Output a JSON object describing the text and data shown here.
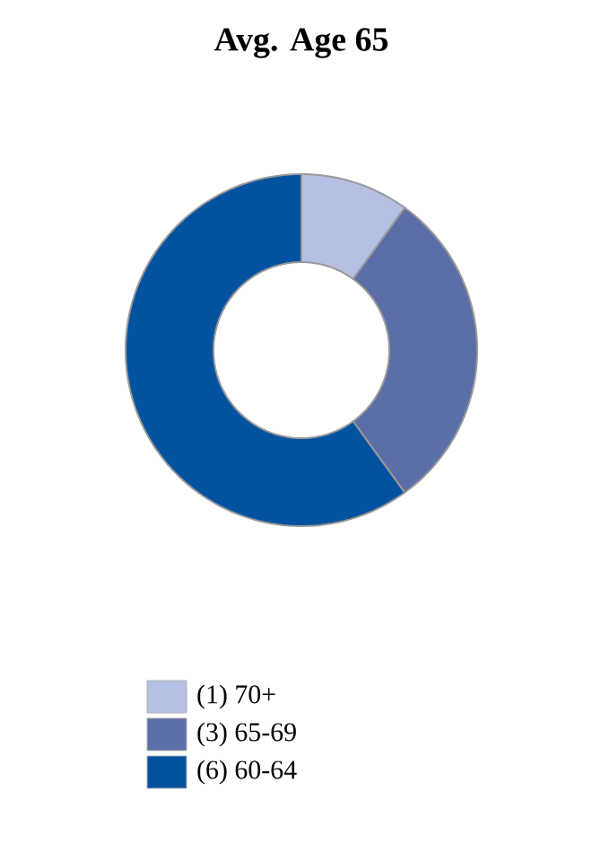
{
  "chart_data": {
    "type": "donut",
    "title": "Avg. Age 65",
    "categories": [
      "(1) 70+",
      "(3) 65-69",
      "(6) 60-64"
    ],
    "values": [
      1,
      3,
      6
    ],
    "colors": [
      "#b4c0e4",
      "#5b6ea8",
      "#0252a0"
    ],
    "legend": "bottom"
  }
}
